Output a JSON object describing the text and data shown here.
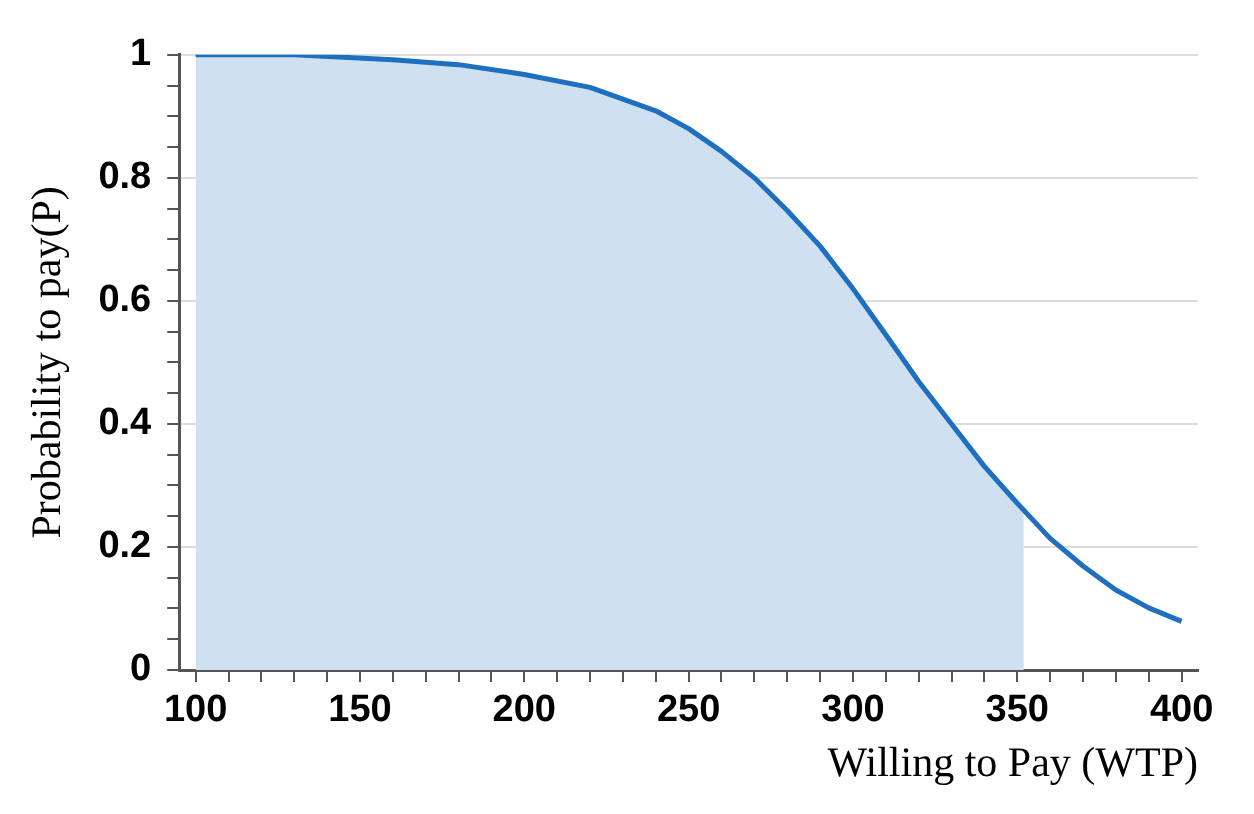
{
  "chart_data": {
    "type": "line",
    "xlabel": "Willing to Pay (WTP)",
    "ylabel": "Probability to pay(P)",
    "series": [
      {
        "type": "area",
        "color": "#cfe0f1",
        "x": [
          100,
          130,
          160,
          180,
          200,
          220,
          240,
          250,
          260,
          270,
          280,
          290,
          300,
          310,
          320,
          330,
          340,
          350,
          352
        ],
        "values": [
          1.0,
          1.0,
          0.992,
          0.984,
          0.968,
          0.947,
          0.909,
          0.88,
          0.843,
          0.8,
          0.747,
          0.689,
          0.62,
          0.545,
          0.469,
          0.4,
          0.331,
          0.271,
          0.26
        ]
      },
      {
        "type": "line",
        "color": "#1f6fc0",
        "x": [
          100,
          130,
          160,
          180,
          200,
          220,
          240,
          250,
          260,
          270,
          280,
          290,
          300,
          310,
          320,
          330,
          340,
          350,
          360,
          370,
          380,
          390,
          400
        ],
        "values": [
          1.0,
          1.0,
          0.992,
          0.984,
          0.968,
          0.947,
          0.909,
          0.88,
          0.843,
          0.8,
          0.747,
          0.689,
          0.62,
          0.545,
          0.469,
          0.4,
          0.331,
          0.271,
          0.214,
          0.169,
          0.13,
          0.101,
          0.079
        ]
      }
    ],
    "xlim": [
      95,
      405
    ],
    "xticks": [
      100,
      {
        "value": 110,
        "label": null
      },
      {
        "value": 120,
        "label": null
      },
      {
        "value": 130,
        "label": null
      },
      {
        "value": 140,
        "label": null
      },
      150,
      {
        "value": 160,
        "label": null
      },
      {
        "value": 170,
        "label": null
      },
      {
        "value": 180,
        "label": null
      },
      {
        "value": 190,
        "label": null
      },
      200,
      {
        "value": 210,
        "label": null
      },
      {
        "value": 220,
        "label": null
      },
      {
        "value": 230,
        "label": null
      },
      {
        "value": 240,
        "label": null
      },
      250,
      {
        "value": 260,
        "label": null
      },
      {
        "value": 270,
        "label": null
      },
      {
        "value": 280,
        "label": null
      },
      {
        "value": 290,
        "label": null
      },
      300,
      {
        "value": 310,
        "label": null
      },
      {
        "value": 320,
        "label": null
      },
      {
        "value": 330,
        "label": null
      },
      {
        "value": 340,
        "label": null
      },
      350,
      {
        "value": 360,
        "label": null
      },
      {
        "value": 370,
        "label": null
      },
      {
        "value": 380,
        "label": null
      },
      {
        "value": 390,
        "label": null
      },
      400
    ],
    "ylim": [
      0,
      1
    ],
    "yticks": [
      0,
      {
        "value": 0.05,
        "label": null
      },
      {
        "value": 0.1,
        "label": null
      },
      {
        "value": 0.15,
        "label": null
      },
      0.2,
      {
        "value": 0.25,
        "label": null
      },
      {
        "value": 0.3,
        "label": null
      },
      {
        "value": 0.35,
        "label": null
      },
      0.4,
      {
        "value": 0.45,
        "label": null
      },
      {
        "value": 0.5,
        "label": null
      },
      {
        "value": 0.55,
        "label": null
      },
      0.6,
      {
        "value": 0.65,
        "label": null
      },
      {
        "value": 0.7,
        "label": null
      },
      {
        "value": 0.75,
        "label": null
      },
      0.8,
      {
        "value": 0.85,
        "label": null
      },
      {
        "value": 0.9,
        "label": null
      },
      {
        "value": 0.95,
        "label": null
      },
      1
    ],
    "grid": "y",
    "marker": "none",
    "line_style": "solid",
    "legend": false
  }
}
